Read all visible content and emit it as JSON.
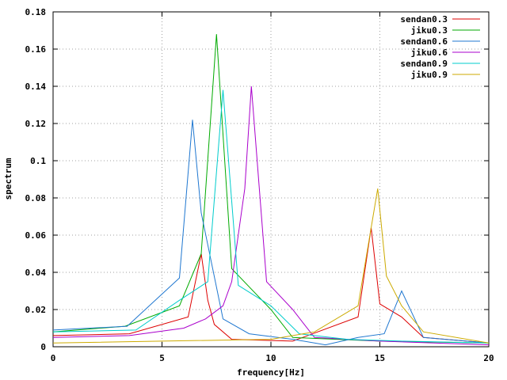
{
  "chart_data": {
    "type": "line",
    "title": "",
    "xlabel": "frequency[Hz]",
    "ylabel": "spectrum",
    "xlim": [
      0,
      20
    ],
    "ylim": [
      0,
      0.18
    ],
    "xticks": [
      0,
      5,
      10,
      15,
      20
    ],
    "xtick_labels": [
      "0",
      "5",
      "10",
      "15",
      "20"
    ],
    "yticks": [
      0,
      0.02,
      0.04,
      0.06,
      0.08,
      0.1,
      0.12,
      0.14,
      0.16,
      0.18
    ],
    "ytick_labels": [
      "0",
      "0.02",
      "0.04",
      "0.06",
      "0.08",
      "0.1",
      "0.12",
      "0.14",
      "0.16",
      "0.18"
    ],
    "grid": true,
    "legend_position": "top-right",
    "series": [
      {
        "name": "sendan0.3",
        "color": "#dd0000",
        "points": [
          [
            0,
            0.006
          ],
          [
            3.5,
            0.007
          ],
          [
            6.2,
            0.016
          ],
          [
            6.8,
            0.05
          ],
          [
            7.1,
            0.025
          ],
          [
            7.4,
            0.012
          ],
          [
            8.2,
            0.004
          ],
          [
            11,
            0.003
          ],
          [
            14,
            0.016
          ],
          [
            14.6,
            0.064
          ],
          [
            15,
            0.023
          ],
          [
            16,
            0.016
          ],
          [
            17,
            0.005
          ],
          [
            20,
            0.002
          ]
        ]
      },
      {
        "name": "jiku0.3",
        "color": "#00aa00",
        "points": [
          [
            0,
            0.008
          ],
          [
            3.3,
            0.011
          ],
          [
            5.8,
            0.022
          ],
          [
            6.8,
            0.05
          ],
          [
            7.5,
            0.168
          ],
          [
            8.2,
            0.042
          ],
          [
            10,
            0.02
          ],
          [
            11,
            0.005
          ],
          [
            15,
            0.003
          ],
          [
            20,
            0.002
          ]
        ]
      },
      {
        "name": "sendan0.6",
        "color": "#1f77d0",
        "points": [
          [
            0,
            0.009
          ],
          [
            3.4,
            0.011
          ],
          [
            5.8,
            0.037
          ],
          [
            6.4,
            0.122
          ],
          [
            6.8,
            0.072
          ],
          [
            7.8,
            0.015
          ],
          [
            9,
            0.007
          ],
          [
            11,
            0.004
          ],
          [
            12.5,
            0.001
          ],
          [
            14,
            0.005
          ],
          [
            15.2,
            0.007
          ],
          [
            16,
            0.03
          ],
          [
            17,
            0.005
          ],
          [
            20,
            0.002
          ]
        ]
      },
      {
        "name": "jiku0.6",
        "color": "#aa00cc",
        "points": [
          [
            0,
            0.005
          ],
          [
            3.5,
            0.006
          ],
          [
            6,
            0.01
          ],
          [
            7,
            0.015
          ],
          [
            7.8,
            0.022
          ],
          [
            8.2,
            0.035
          ],
          [
            8.8,
            0.085
          ],
          [
            9.1,
            0.14
          ],
          [
            9.8,
            0.035
          ],
          [
            11,
            0.02
          ],
          [
            12,
            0.005
          ],
          [
            15,
            0.003
          ],
          [
            20,
            0.001
          ]
        ]
      },
      {
        "name": "sendan0.9",
        "color": "#00cccc",
        "points": [
          [
            0,
            0.008
          ],
          [
            3.8,
            0.009
          ],
          [
            5.8,
            0.025
          ],
          [
            7.1,
            0.035
          ],
          [
            7.8,
            0.138
          ],
          [
            8.5,
            0.033
          ],
          [
            10,
            0.022
          ],
          [
            11.3,
            0.007
          ],
          [
            13.5,
            0.004
          ],
          [
            16,
            0.003
          ],
          [
            20,
            0.002
          ]
        ]
      },
      {
        "name": "jiku0.9",
        "color": "#ccaa00",
        "points": [
          [
            0,
            0.002
          ],
          [
            5,
            0.003
          ],
          [
            10,
            0.004
          ],
          [
            12,
            0.008
          ],
          [
            14,
            0.022
          ],
          [
            14.9,
            0.085
          ],
          [
            15.3,
            0.038
          ],
          [
            16,
            0.022
          ],
          [
            17,
            0.008
          ],
          [
            20,
            0.002
          ]
        ]
      }
    ]
  }
}
